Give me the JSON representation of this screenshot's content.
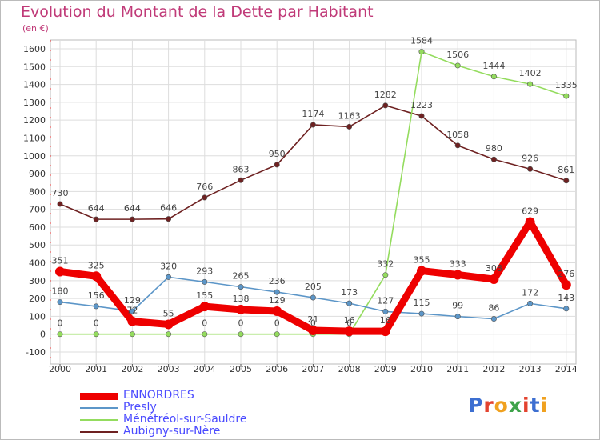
{
  "title": "Evolution du Montant de la Dette par Habitant",
  "subtitle": "(en €)",
  "logo": {
    "text": "Proxiti",
    "colors": [
      "#3d6fd1",
      "#e3432f",
      "#f0a11f",
      "#3ea34a",
      "#e3432f",
      "#3d6fd1",
      "#f0a11f"
    ]
  },
  "chart_data": {
    "type": "line",
    "x": [
      2000,
      2001,
      2002,
      2003,
      2004,
      2005,
      2006,
      2007,
      2008,
      2009,
      2010,
      2011,
      2012,
      2013,
      2014
    ],
    "ylim": [
      -100,
      1600
    ],
    "y_ticks": [
      -100,
      0,
      100,
      200,
      300,
      400,
      500,
      600,
      700,
      800,
      900,
      1000,
      1100,
      1200,
      1300,
      1400,
      1500,
      1600
    ],
    "grid": true,
    "legend_position": "bottom-left",
    "series": [
      {
        "name": "Aubigny-sur-Nère",
        "color": "#6e2121",
        "values": [
          730,
          644,
          644,
          646,
          766,
          863,
          950,
          1174,
          1163,
          1282,
          1223,
          1058,
          980,
          926,
          861
        ]
      },
      {
        "name": "Ménétréol-sur-Sauldre",
        "color": "#94dc5e",
        "values": [
          0,
          0,
          0,
          0,
          0,
          0,
          0,
          0,
          0,
          332,
          1584,
          1506,
          1444,
          1402,
          1335
        ],
        "labels": [
          "0",
          "0",
          "",
          "",
          "0",
          "0",
          "0",
          "0",
          "0",
          "332",
          "1584",
          "1506",
          "1444",
          "1402",
          "1335"
        ]
      },
      {
        "name": "Presly",
        "color": "#5c96c8",
        "values": [
          180,
          156,
          129,
          320,
          293,
          265,
          236,
          205,
          173,
          127,
          115,
          99,
          86,
          172,
          143
        ]
      },
      {
        "name": "ENNORDRES",
        "color": "#ee0000",
        "values": [
          351,
          325,
          72,
          55,
          155,
          138,
          129,
          21,
          16,
          16,
          355,
          333,
          308,
          629,
          276
        ]
      }
    ]
  },
  "legend": [
    {
      "label": "ENNORDRES",
      "color": "#ee0000",
      "thickness": 9
    },
    {
      "label": "Presly",
      "color": "#5c96c8",
      "thickness": 2
    },
    {
      "label": "Ménétréol-sur-Sauldre",
      "color": "#94dc5e",
      "thickness": 2
    },
    {
      "label": "Aubigny-sur-Nère",
      "color": "#6e2121",
      "thickness": 2
    }
  ]
}
